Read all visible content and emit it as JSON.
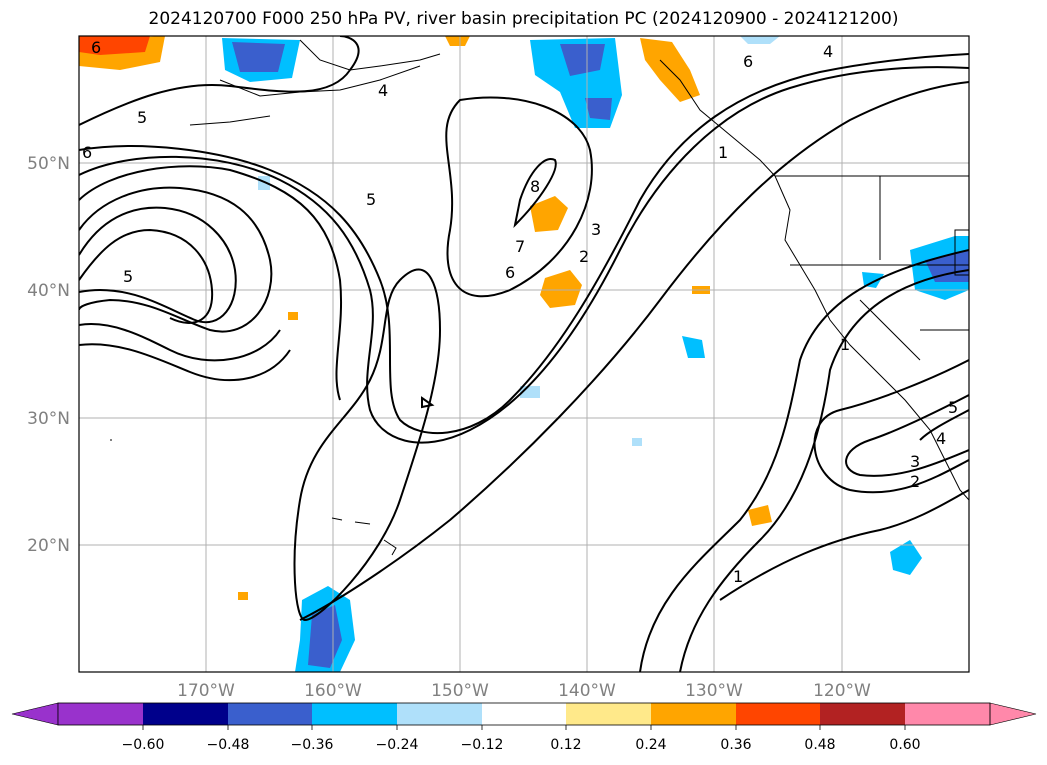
{
  "title": "2024120700 F000 250 hPa PV, river basin precipitation PC (2024120900 - 2024121200)",
  "longitude_labels": [
    "170°W",
    "160°W",
    "150°W",
    "140°W",
    "130°W",
    "120°W"
  ],
  "latitude_labels": [
    "50°N",
    "40°N",
    "30°N",
    "20°N"
  ],
  "contour_labels": [
    "6",
    "5",
    "6",
    "5",
    "4",
    "5",
    "8",
    "7",
    "6",
    "2",
    "3",
    "6",
    "4",
    "1",
    "1",
    "5",
    "4",
    "3",
    "2",
    "1"
  ],
  "colorbar": {
    "ticks": [
      "−0.60",
      "−0.48",
      "−0.36",
      "−0.24",
      "−0.12",
      "0.12",
      "0.24",
      "0.36",
      "0.48",
      "0.60"
    ],
    "colors": [
      "#9932cc",
      "#00008b",
      "#3a5fcd",
      "#00bfff",
      "#afe0fa",
      "#ffffff",
      "#ffe98a",
      "#ffa500",
      "#ff4500",
      "#b22222",
      "#ff88aa"
    ]
  }
}
